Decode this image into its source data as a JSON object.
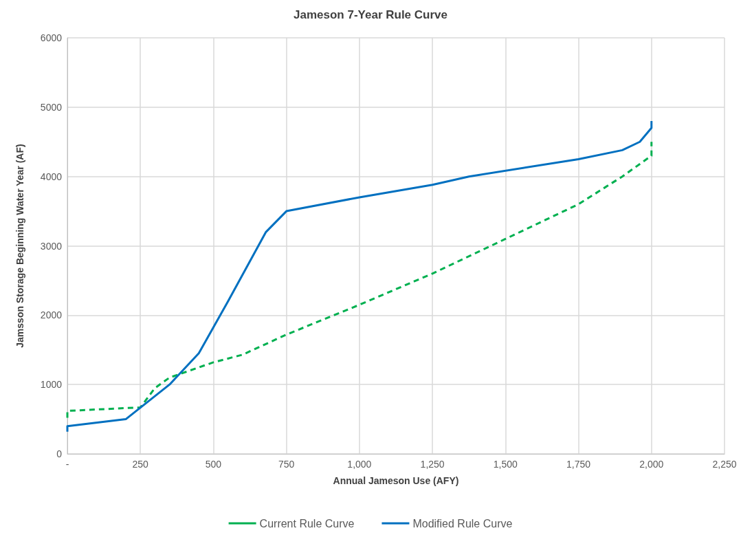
{
  "chart_data": {
    "type": "line",
    "title": "Jameson 7-Year Rule Curve",
    "xlabel": "Annual Jameson Use (AFY)",
    "ylabel": "Jamsson Storage Beginning Water Year (AF)",
    "xlim": [
      0,
      2250
    ],
    "xticks": [
      {
        "value": 0,
        "label": "-"
      },
      250,
      500,
      750,
      {
        "value": 1000,
        "label": "1,000"
      },
      {
        "value": 1250,
        "label": "1,250"
      },
      {
        "value": 1500,
        "label": "1,500"
      },
      {
        "value": 1750,
        "label": "1,750"
      },
      {
        "value": 2000,
        "label": "2,000"
      },
      {
        "value": 2250,
        "label": "2,250"
      }
    ],
    "ylim": [
      0,
      6000
    ],
    "yticks": [
      0,
      1000,
      2000,
      3000,
      4000,
      5000,
      6000
    ],
    "grid": true,
    "legend": "bottom",
    "marker": "none",
    "series": [
      {
        "name": "Current Rule Curve",
        "color": "#00b050",
        "line_style": "dashed",
        "x": [
          0,
          0,
          250,
          300,
          350,
          500,
          600,
          750,
          1000,
          1250,
          1500,
          1750,
          1900,
          2000,
          2000
        ],
        "values": [
          520,
          620,
          670,
          950,
          1100,
          1320,
          1430,
          1720,
          2150,
          2600,
          3100,
          3600,
          4000,
          4300,
          4500
        ]
      },
      {
        "name": "Modified Rule Curve",
        "color": "#0070c0",
        "line_style": "solid",
        "x": [
          0,
          0,
          200,
          350,
          450,
          550,
          680,
          750,
          1000,
          1250,
          1375,
          1750,
          1900,
          1960,
          2000,
          2000
        ],
        "values": [
          320,
          400,
          500,
          1000,
          1450,
          2200,
          3200,
          3500,
          3700,
          3880,
          4000,
          4250,
          4380,
          4500,
          4700,
          4800
        ]
      }
    ]
  }
}
